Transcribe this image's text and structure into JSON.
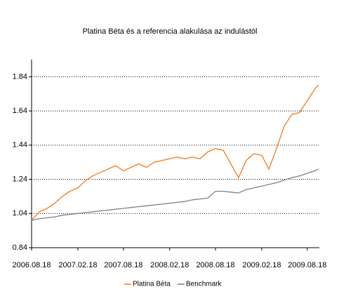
{
  "chart_data": {
    "type": "line",
    "title": "Platina Béta és a referencia alakulása az indulástól",
    "x": [
      "2006.08.18",
      "2006.09.18",
      "2006.10.18",
      "2006.11.18",
      "2006.12.18",
      "2007.01.18",
      "2007.02.18",
      "2007.03.18",
      "2007.04.18",
      "2007.05.18",
      "2007.06.18",
      "2007.07.18",
      "2007.08.18",
      "2007.09.18",
      "2007.10.18",
      "2007.11.18",
      "2007.12.18",
      "2008.01.18",
      "2008.02.18",
      "2008.03.18",
      "2008.04.18",
      "2008.05.18",
      "2008.06.18",
      "2008.07.18",
      "2008.08.18",
      "2008.09.18",
      "2008.10.18",
      "2008.11.18",
      "2008.12.18",
      "2009.01.18",
      "2009.02.18",
      "2009.03.18",
      "2009.04.18",
      "2009.05.18",
      "2009.06.18",
      "2009.07.18",
      "2009.08.18",
      "2009.09.18",
      "2009.10.01"
    ],
    "series": [
      {
        "name": "Platina Béta",
        "color": "#f07a1e",
        "values": [
          1.0,
          1.05,
          1.07,
          1.1,
          1.14,
          1.17,
          1.19,
          1.23,
          1.26,
          1.28,
          1.3,
          1.32,
          1.29,
          1.31,
          1.33,
          1.31,
          1.34,
          1.35,
          1.36,
          1.37,
          1.36,
          1.37,
          1.36,
          1.4,
          1.42,
          1.41,
          1.33,
          1.25,
          1.35,
          1.39,
          1.38,
          1.3,
          1.42,
          1.55,
          1.62,
          1.63,
          1.7,
          1.77,
          1.79
        ]
      },
      {
        "name": "Benchmark",
        "color": "#808080",
        "values": [
          1.0,
          1.01,
          1.015,
          1.02,
          1.03,
          1.035,
          1.04,
          1.045,
          1.05,
          1.055,
          1.06,
          1.065,
          1.07,
          1.075,
          1.08,
          1.085,
          1.09,
          1.095,
          1.1,
          1.105,
          1.11,
          1.12,
          1.125,
          1.13,
          1.17,
          1.17,
          1.165,
          1.16,
          1.18,
          1.19,
          1.2,
          1.21,
          1.22,
          1.235,
          1.25,
          1.26,
          1.275,
          1.29,
          1.3
        ]
      }
    ],
    "xlim": [
      "2006.08.18",
      "2009.10.05"
    ],
    "xticks": [
      "2006.08.18",
      "2007.02.18",
      "2007.08.18",
      "2008.02.18",
      "2008.08.18",
      "2009.02.18",
      "2009.08.18"
    ],
    "ylim": [
      0.84,
      1.94
    ],
    "yticks": [
      0.84,
      1.04,
      1.24,
      1.44,
      1.64,
      1.84
    ],
    "grid": true,
    "legend": "bottom"
  }
}
